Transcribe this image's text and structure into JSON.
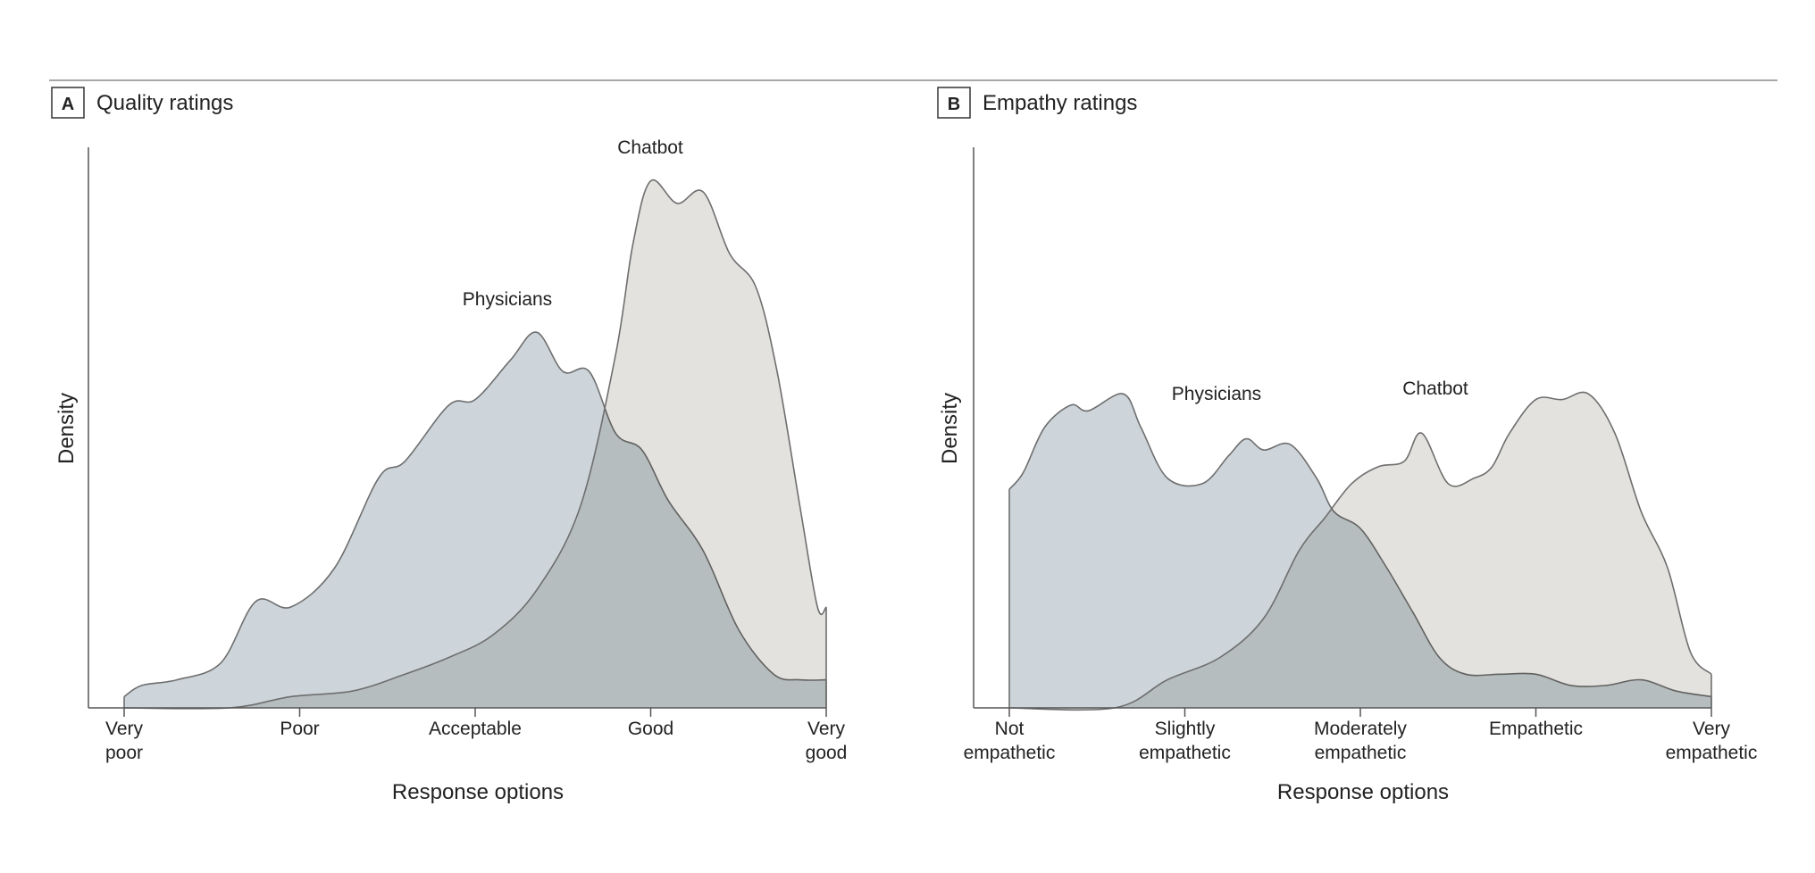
{
  "chart_data": [
    {
      "type": "area",
      "panel_letter": "A",
      "title": "Quality ratings",
      "xlabel": "Response options",
      "ylabel": "Density",
      "categories": [
        "Very poor",
        "Poor",
        "Acceptable",
        "Good",
        "Very good"
      ],
      "tick_labels": [
        [
          "Very",
          "poor"
        ],
        [
          "Poor"
        ],
        [
          "Acceptable"
        ],
        [
          "Good"
        ],
        [
          "Very",
          "good"
        ]
      ],
      "xlim": [
        1,
        5
      ],
      "ylim": [
        0,
        1
      ],
      "grid": false,
      "legend": "none (direct labels)",
      "series": [
        {
          "name": "Physicians",
          "color": "#cdd5da",
          "points": [
            [
              1.0,
              0.02
            ],
            [
              1.1,
              0.04
            ],
            [
              1.3,
              0.05
            ],
            [
              1.55,
              0.08
            ],
            [
              1.75,
              0.19
            ],
            [
              1.95,
              0.18
            ],
            [
              2.2,
              0.25
            ],
            [
              2.45,
              0.41
            ],
            [
              2.6,
              0.44
            ],
            [
              2.85,
              0.54
            ],
            [
              3.0,
              0.55
            ],
            [
              3.2,
              0.62
            ],
            [
              3.35,
              0.67
            ],
            [
              3.5,
              0.6
            ],
            [
              3.65,
              0.6
            ],
            [
              3.8,
              0.49
            ],
            [
              3.95,
              0.46
            ],
            [
              4.1,
              0.37
            ],
            [
              4.3,
              0.28
            ],
            [
              4.5,
              0.14
            ],
            [
              4.7,
              0.06
            ],
            [
              4.85,
              0.05
            ],
            [
              5.0,
              0.05
            ]
          ]
        },
        {
          "name": "Chatbot",
          "color": "#e3e2df",
          "points": [
            [
              1.0,
              0.0
            ],
            [
              1.6,
              0.0
            ],
            [
              1.95,
              0.02
            ],
            [
              2.3,
              0.03
            ],
            [
              2.6,
              0.06
            ],
            [
              2.85,
              0.09
            ],
            [
              3.1,
              0.13
            ],
            [
              3.35,
              0.21
            ],
            [
              3.6,
              0.36
            ],
            [
              3.8,
              0.63
            ],
            [
              3.9,
              0.83
            ],
            [
              4.0,
              0.94
            ],
            [
              4.15,
              0.9
            ],
            [
              4.3,
              0.92
            ],
            [
              4.45,
              0.81
            ],
            [
              4.6,
              0.75
            ],
            [
              4.72,
              0.6
            ],
            [
              4.85,
              0.36
            ],
            [
              4.95,
              0.18
            ],
            [
              5.0,
              0.18
            ]
          ]
        }
      ]
    },
    {
      "type": "area",
      "panel_letter": "B",
      "title": "Empathy ratings",
      "xlabel": "Response options",
      "ylabel": "Density",
      "categories": [
        "Not empathetic",
        "Slightly empathetic",
        "Moderately empathetic",
        "Empathetic",
        "Very empathetic"
      ],
      "tick_labels": [
        [
          "Not",
          "empathetic"
        ],
        [
          "Slightly",
          "empathetic"
        ],
        [
          "Moderately",
          "empathetic"
        ],
        [
          "Empathetic"
        ],
        [
          "Very",
          "empathetic"
        ]
      ],
      "xlim": [
        1,
        5
      ],
      "ylim": [
        0,
        1
      ],
      "grid": false,
      "legend": "none (direct labels)",
      "series": [
        {
          "name": "Physicians",
          "color": "#cdd5da",
          "points": [
            [
              1.0,
              0.39
            ],
            [
              1.08,
              0.42
            ],
            [
              1.2,
              0.5
            ],
            [
              1.35,
              0.54
            ],
            [
              1.45,
              0.53
            ],
            [
              1.65,
              0.56
            ],
            [
              1.75,
              0.5
            ],
            [
              1.9,
              0.41
            ],
            [
              2.1,
              0.4
            ],
            [
              2.25,
              0.45
            ],
            [
              2.35,
              0.48
            ],
            [
              2.45,
              0.46
            ],
            [
              2.6,
              0.47
            ],
            [
              2.75,
              0.41
            ],
            [
              2.85,
              0.35
            ],
            [
              3.0,
              0.32
            ],
            [
              3.15,
              0.25
            ],
            [
              3.3,
              0.17
            ],
            [
              3.45,
              0.09
            ],
            [
              3.6,
              0.06
            ],
            [
              3.8,
              0.06
            ],
            [
              4.0,
              0.06
            ],
            [
              4.2,
              0.04
            ],
            [
              4.4,
              0.04
            ],
            [
              4.6,
              0.05
            ],
            [
              4.8,
              0.03
            ],
            [
              5.0,
              0.02
            ]
          ]
        },
        {
          "name": "Chatbot",
          "color": "#e3e2df",
          "points": [
            [
              1.0,
              0.0
            ],
            [
              1.6,
              0.0
            ],
            [
              1.9,
              0.05
            ],
            [
              2.2,
              0.09
            ],
            [
              2.45,
              0.16
            ],
            [
              2.65,
              0.28
            ],
            [
              2.8,
              0.34
            ],
            [
              2.95,
              0.4
            ],
            [
              3.1,
              0.43
            ],
            [
              3.25,
              0.44
            ],
            [
              3.35,
              0.49
            ],
            [
              3.5,
              0.4
            ],
            [
              3.65,
              0.41
            ],
            [
              3.75,
              0.43
            ],
            [
              3.85,
              0.49
            ],
            [
              4.0,
              0.55
            ],
            [
              4.15,
              0.55
            ],
            [
              4.3,
              0.56
            ],
            [
              4.45,
              0.49
            ],
            [
              4.6,
              0.35
            ],
            [
              4.75,
              0.25
            ],
            [
              4.88,
              0.1
            ],
            [
              5.0,
              0.06
            ]
          ]
        }
      ]
    }
  ]
}
